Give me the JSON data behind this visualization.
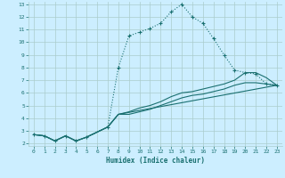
{
  "xlabel": "Humidex (Indice chaleur)",
  "background_color": "#cceeff",
  "grid_color": "#aacccc",
  "line_color": "#1a7070",
  "xlim": [
    -0.5,
    23.5
  ],
  "ylim": [
    1.8,
    13.2
  ],
  "xticks": [
    0,
    1,
    2,
    3,
    4,
    5,
    6,
    7,
    8,
    9,
    10,
    11,
    12,
    13,
    14,
    15,
    16,
    17,
    18,
    19,
    20,
    21,
    22,
    23
  ],
  "yticks": [
    2,
    3,
    4,
    5,
    6,
    7,
    8,
    9,
    10,
    11,
    12,
    13
  ],
  "series": [
    {
      "x": [
        0,
        1,
        2,
        3,
        4,
        5,
        7,
        8,
        9,
        10,
        11,
        12,
        13,
        14,
        15,
        16,
        17,
        18,
        19,
        20,
        21,
        22,
        23
      ],
      "y": [
        2.7,
        2.6,
        2.2,
        2.6,
        2.2,
        2.5,
        3.3,
        8.0,
        10.5,
        10.8,
        11.1,
        11.5,
        12.4,
        13.0,
        12.0,
        11.5,
        10.3,
        9.0,
        7.8,
        7.6,
        7.5,
        6.7,
        6.6
      ],
      "style": "dotted",
      "marker": "+"
    },
    {
      "x": [
        0,
        1,
        2,
        3,
        4,
        5,
        7,
        8,
        23
      ],
      "y": [
        2.7,
        2.6,
        2.2,
        2.6,
        2.2,
        2.5,
        3.3,
        4.3,
        6.6
      ],
      "style": "solid",
      "marker": null
    },
    {
      "x": [
        0,
        1,
        2,
        3,
        4,
        5,
        7,
        8,
        9,
        10,
        11,
        12,
        13,
        14,
        15,
        16,
        17,
        18,
        19,
        20,
        21,
        22,
        23
      ],
      "y": [
        2.7,
        2.6,
        2.2,
        2.6,
        2.2,
        2.5,
        3.3,
        4.3,
        4.5,
        4.8,
        5.0,
        5.3,
        5.7,
        6.0,
        6.1,
        6.3,
        6.5,
        6.7,
        7.0,
        7.6,
        7.6,
        7.2,
        6.6
      ],
      "style": "solid",
      "marker": null
    },
    {
      "x": [
        0,
        1,
        2,
        3,
        4,
        5,
        7,
        8,
        9,
        10,
        11,
        12,
        13,
        14,
        15,
        16,
        17,
        18,
        19,
        20,
        21,
        22,
        23
      ],
      "y": [
        2.7,
        2.6,
        2.2,
        2.6,
        2.2,
        2.5,
        3.3,
        4.3,
        4.3,
        4.5,
        4.7,
        5.0,
        5.3,
        5.6,
        5.8,
        5.9,
        6.1,
        6.3,
        6.6,
        6.8,
        6.8,
        6.7,
        6.6
      ],
      "style": "solid",
      "marker": null
    }
  ]
}
